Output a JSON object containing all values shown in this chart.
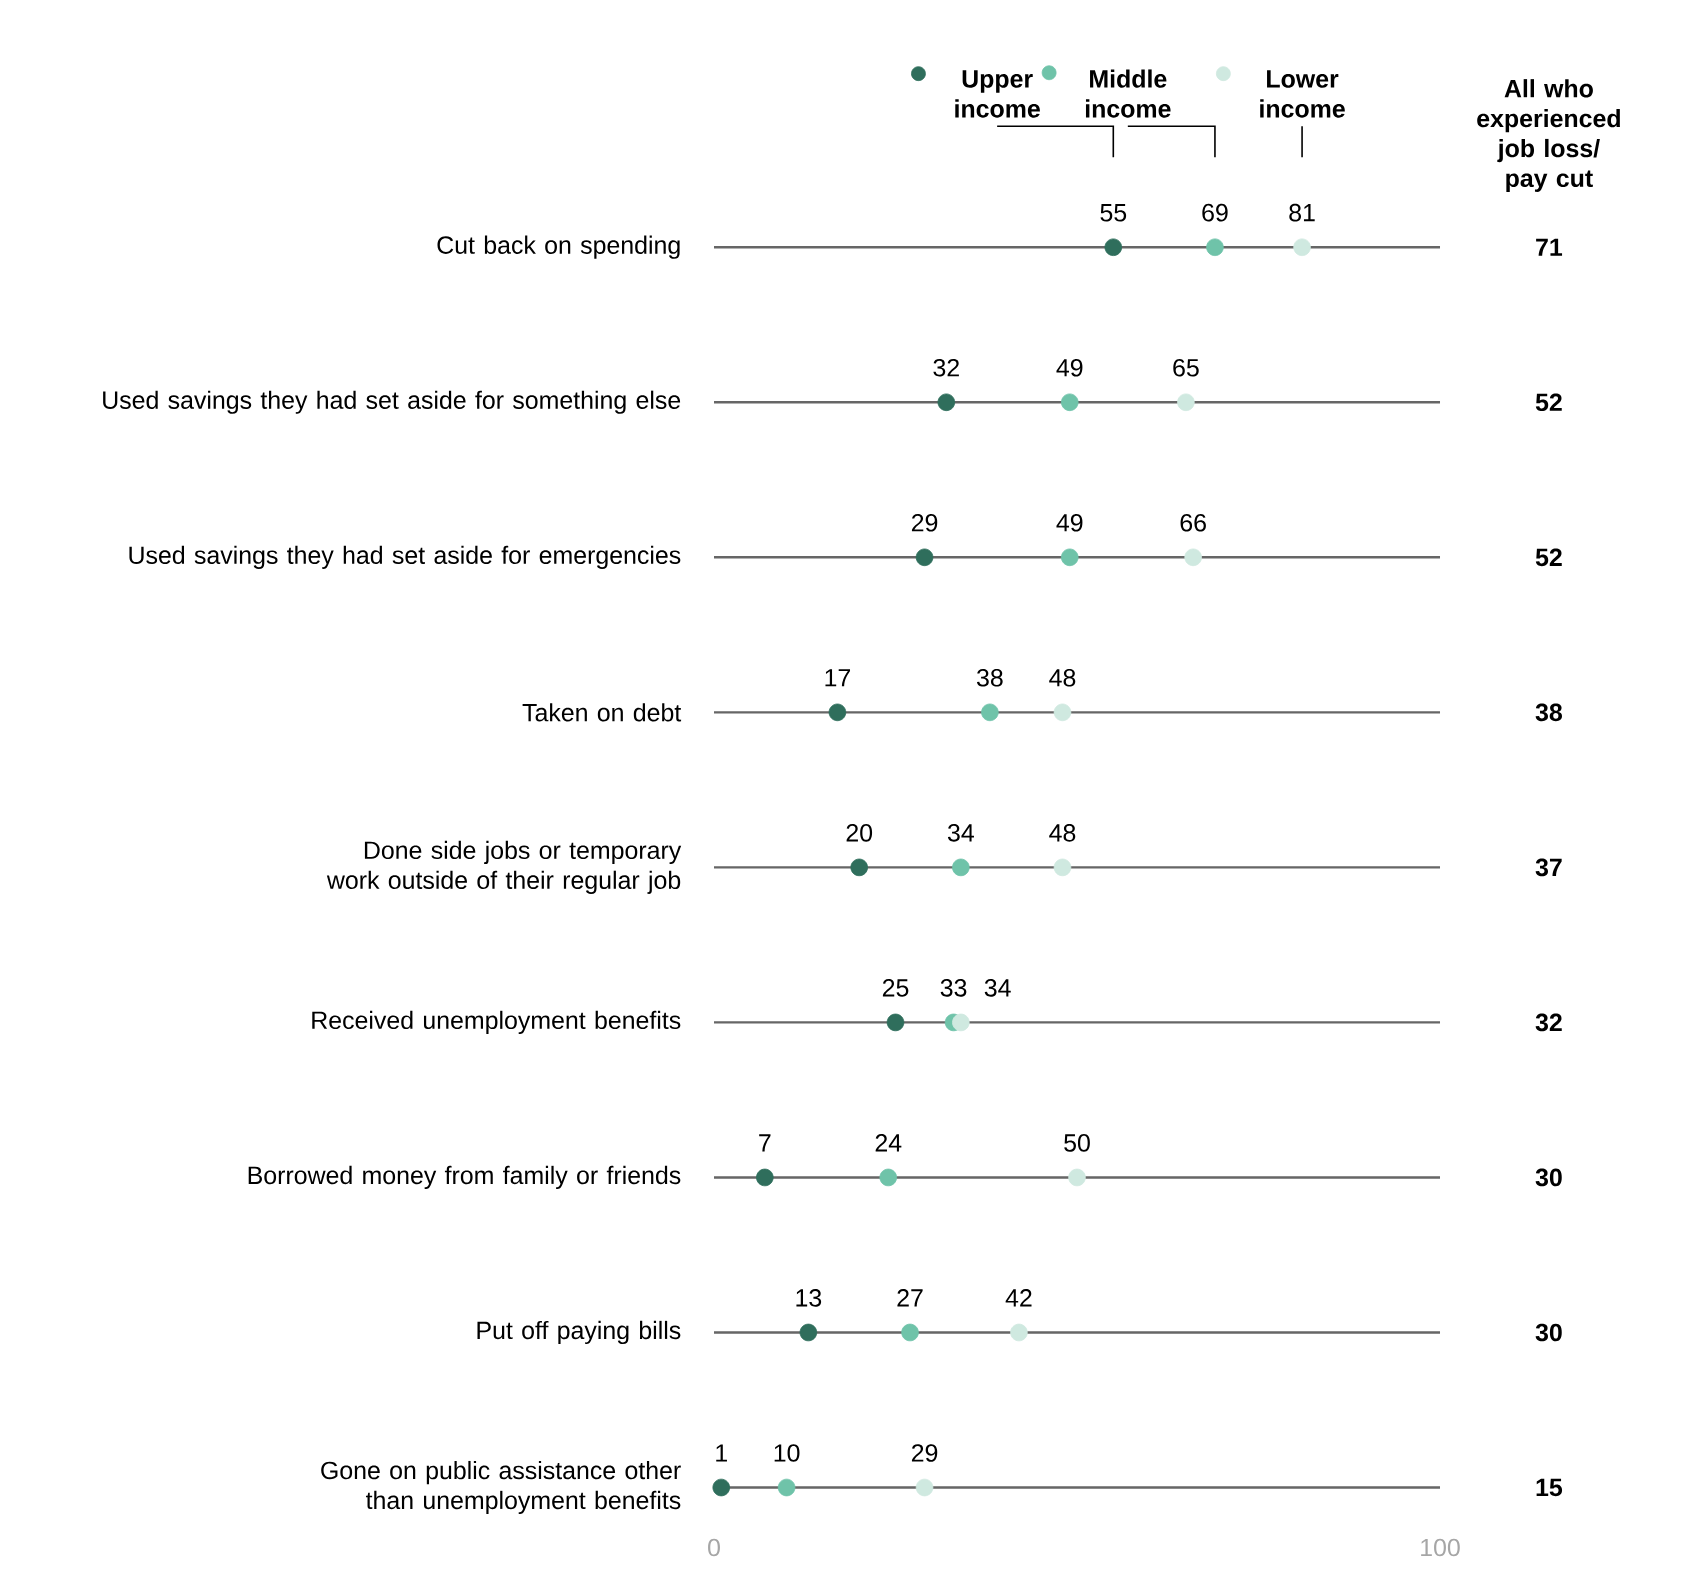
{
  "chart_data": {
    "type": "scatter",
    "orientation": "horizontal",
    "categories": [
      "Cut back on spending",
      "Used savings they had set aside for something else",
      "Used savings they had set aside for emergencies",
      "Taken on debt",
      "Done side jobs or temporary work outside of their regular job",
      "Received unemployment benefits",
      "Borrowed money from family or friends",
      "Put off paying bills",
      "Gone on public assistance other than unemployment benefits"
    ],
    "series": [
      {
        "name": "Upper income",
        "color": "#2f6e5c",
        "values": [
          55,
          32,
          29,
          17,
          20,
          25,
          7,
          13,
          1
        ]
      },
      {
        "name": "Middle income",
        "color": "#6fc3a9",
        "values": [
          69,
          49,
          49,
          38,
          34,
          33,
          24,
          27,
          10
        ]
      },
      {
        "name": "Lower income",
        "color": "#cfe9e0",
        "values": [
          81,
          65,
          66,
          48,
          48,
          34,
          50,
          42,
          29
        ]
      }
    ],
    "xlim": [
      0,
      100
    ],
    "xticks": [
      0,
      100
    ],
    "grid": "y",
    "legend": "top",
    "marker": "circle",
    "data_labels": true,
    "annotations": [
      "All who experienced job loss/ pay cut",
      "71",
      "52",
      "52",
      "38",
      "37",
      "32",
      "30",
      "30",
      "15"
    ]
  }
}
